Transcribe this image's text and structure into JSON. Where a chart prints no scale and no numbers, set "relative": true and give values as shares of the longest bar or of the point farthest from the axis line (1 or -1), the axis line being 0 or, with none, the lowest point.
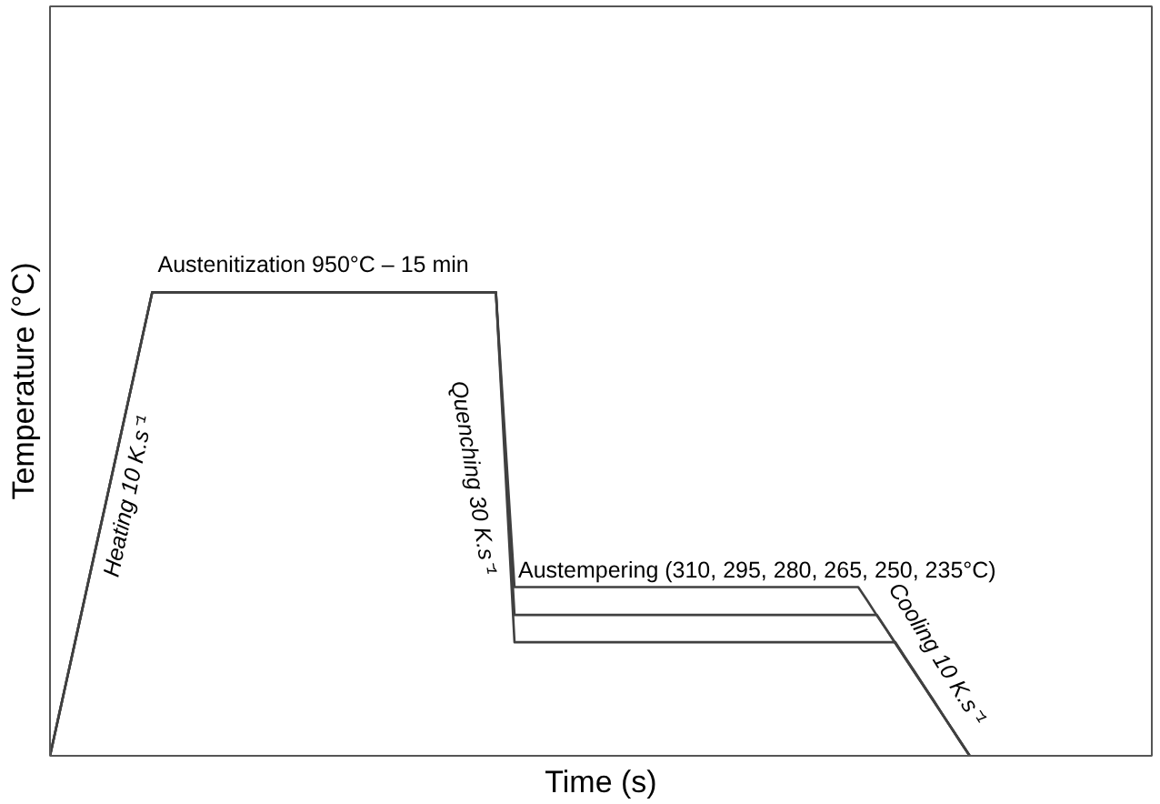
{
  "chart_data": {
    "type": "line",
    "relative": true,
    "xlabel": "Time (s)",
    "ylabel": "Temperature (°C)",
    "marker": "none",
    "line_style": "solid",
    "categories": [
      null,
      null,
      null,
      null,
      null,
      null,
      null,
      null,
      null,
      null,
      null,
      null,
      null,
      null,
      null,
      null,
      null,
      null,
      null,
      null,
      null,
      null,
      null,
      null,
      null,
      null,
      null,
      null,
      null,
      null,
      null,
      null,
      null,
      null,
      null,
      null,
      null,
      null,
      null,
      null,
      null,
      null,
      null,
      null,
      null,
      null,
      null,
      null,
      null,
      null,
      null,
      null,
      null,
      null,
      null,
      null,
      null,
      null,
      null,
      null,
      null,
      null,
      null,
      null,
      null,
      null,
      null,
      null,
      null,
      null,
      null,
      null,
      null,
      null,
      null,
      null,
      null,
      null,
      null,
      null,
      null,
      null,
      null,
      null,
      null,
      null,
      null,
      null,
      null,
      null,
      null,
      null,
      null,
      null,
      null,
      null,
      null,
      null,
      null,
      null
    ],
    "series": [
      {
        "color": "#404040",
        "values": [
          0,
          0.091,
          0.182,
          0.273,
          0.364,
          0.455,
          0.545,
          0.636,
          0.727,
          0.818,
          0.909,
          1,
          1,
          1,
          1,
          1,
          1,
          1,
          1,
          1,
          1,
          1,
          1,
          1,
          1,
          1,
          1,
          1,
          1,
          1,
          1,
          1,
          1,
          1,
          1,
          1,
          1,
          1,
          1,
          1,
          1,
          1,
          1,
          1,
          1,
          1,
          1,
          1,
          1,
          0.682,
          0.364,
          0.364,
          0.364,
          0.364,
          0.364,
          0.364,
          0.364,
          0.364,
          0.364,
          0.364,
          0.364,
          0.364,
          0.364,
          0.364,
          0.364,
          0.364,
          0.364,
          0.364,
          0.364,
          0.364,
          0.364,
          0.364,
          0.364,
          0.364,
          0.364,
          0.364,
          0.364,
          0.364,
          0.364,
          0.364,
          0.364,
          0.364,
          0.364,
          0.364,
          0.364,
          0.364,
          0.364,
          0.364,
          0.334,
          0.303,
          0.273,
          0.243,
          0.212,
          0.182,
          0.152,
          0.121,
          0.091,
          0.061,
          0.03,
          0
        ]
      },
      {
        "color": "#404040",
        "values": [
          0,
          0.091,
          0.182,
          0.273,
          0.364,
          0.455,
          0.545,
          0.636,
          0.727,
          0.818,
          0.909,
          1,
          1,
          1,
          1,
          1,
          1,
          1,
          1,
          1,
          1,
          1,
          1,
          1,
          1,
          1,
          1,
          1,
          1,
          1,
          1,
          1,
          1,
          1,
          1,
          1,
          1,
          1,
          1,
          1,
          1,
          1,
          1,
          1,
          1,
          1,
          1,
          1,
          1,
          0.652,
          0.304,
          0.304,
          0.304,
          0.304,
          0.304,
          0.304,
          0.304,
          0.304,
          0.304,
          0.304,
          0.304,
          0.304,
          0.304,
          0.304,
          0.304,
          0.304,
          0.304,
          0.304,
          0.304,
          0.304,
          0.304,
          0.304,
          0.304,
          0.304,
          0.304,
          0.304,
          0.304,
          0.304,
          0.304,
          0.304,
          0.304,
          0.304,
          0.304,
          0.304,
          0.304,
          0.304,
          0.304,
          0.304,
          0.304,
          0.304,
          0.274,
          0.243,
          0.213,
          0.182,
          0.152,
          0.122,
          0.091,
          0.061,
          0.03,
          0
        ]
      },
      {
        "color": "#404040",
        "values": [
          0,
          0.091,
          0.182,
          0.273,
          0.364,
          0.455,
          0.545,
          0.636,
          0.727,
          0.818,
          0.909,
          1,
          1,
          1,
          1,
          1,
          1,
          1,
          1,
          1,
          1,
          1,
          1,
          1,
          1,
          1,
          1,
          1,
          1,
          1,
          1,
          1,
          1,
          1,
          1,
          1,
          1,
          1,
          1,
          1,
          1,
          1,
          1,
          1,
          1,
          1,
          1,
          1,
          1,
          0.622,
          0.245,
          0.245,
          0.245,
          0.245,
          0.245,
          0.245,
          0.245,
          0.245,
          0.245,
          0.245,
          0.245,
          0.245,
          0.245,
          0.245,
          0.245,
          0.245,
          0.245,
          0.245,
          0.245,
          0.245,
          0.245,
          0.245,
          0.245,
          0.245,
          0.245,
          0.245,
          0.245,
          0.245,
          0.245,
          0.245,
          0.245,
          0.245,
          0.245,
          0.245,
          0.245,
          0.245,
          0.245,
          0.245,
          0.245,
          0.245,
          0.245,
          0.245,
          0.214,
          0.184,
          0.153,
          0.123,
          0.092,
          0.061,
          0.031,
          0
        ]
      }
    ],
    "annotations": [
      "Austenitization 950°C – 15 min",
      "Heating 10 K.s⁻¹",
      "Quenching 30 K.s⁻¹",
      "Austempering (310, 295, 280, 265, 250, 235°C)",
      "Cooling 10 K.s⁻¹"
    ]
  }
}
